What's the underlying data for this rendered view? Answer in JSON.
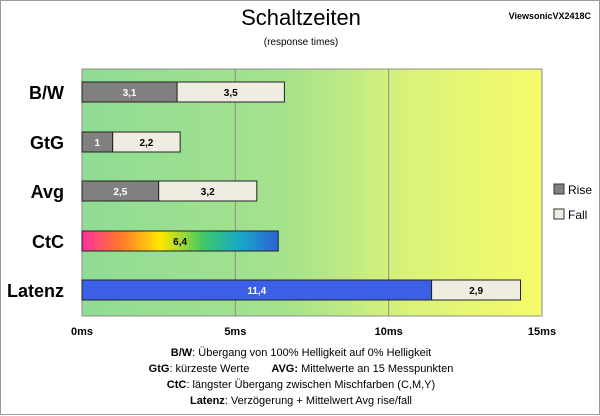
{
  "title": "Schaltzeiten",
  "subtitle": "(response times)",
  "model": "ViewsonicVX2418C",
  "colors": {
    "rise": "#808080",
    "fall": "#efece2",
    "latency_rise": "#3c5fe8",
    "plot_left": "#8fdc95",
    "plot_right": "#f6fb6a"
  },
  "chart_data": {
    "type": "bar",
    "orientation": "horizontal",
    "stacked": true,
    "categories": [
      "B/W",
      "GtG",
      "Avg",
      "CtC",
      "Latenz"
    ],
    "series": [
      {
        "name": "Rise",
        "values": [
          3.1,
          1,
          2.5,
          6.4,
          11.4
        ],
        "labels": [
          "3,1",
          "1",
          "2,5",
          "6,4",
          "11,4"
        ]
      },
      {
        "name": "Fall",
        "values": [
          3.5,
          2.2,
          3.2,
          null,
          2.9
        ],
        "labels": [
          "3,5",
          "2,2",
          "3,2",
          "",
          "2,9"
        ]
      }
    ],
    "xlim": [
      0,
      15
    ],
    "xticks": [
      0,
      5,
      10,
      15
    ],
    "xtick_labels": [
      "0ms",
      "5ms",
      "10ms",
      "15ms"
    ],
    "grid": true,
    "legend_position": "right"
  },
  "notes": {
    "line1_key": "B/W",
    "line1_text": ":  Übergang von 100% Helligkeit auf 0% Helligkeit",
    "line2_key": "GtG",
    "line2_text": ": kürzeste  Werte",
    "line2_key2": "AVG:",
    "line2_text2": " Mittelwerte  an 15 Messpunkten",
    "line3_key": "CtC",
    "line3_text": ": längster Übergang  zwischen Mischfarben  (C,M,Y)",
    "line4_key": "Latenz",
    "line4_text": ": Verzögerung  + Mittelwert  Avg rise/fall"
  }
}
